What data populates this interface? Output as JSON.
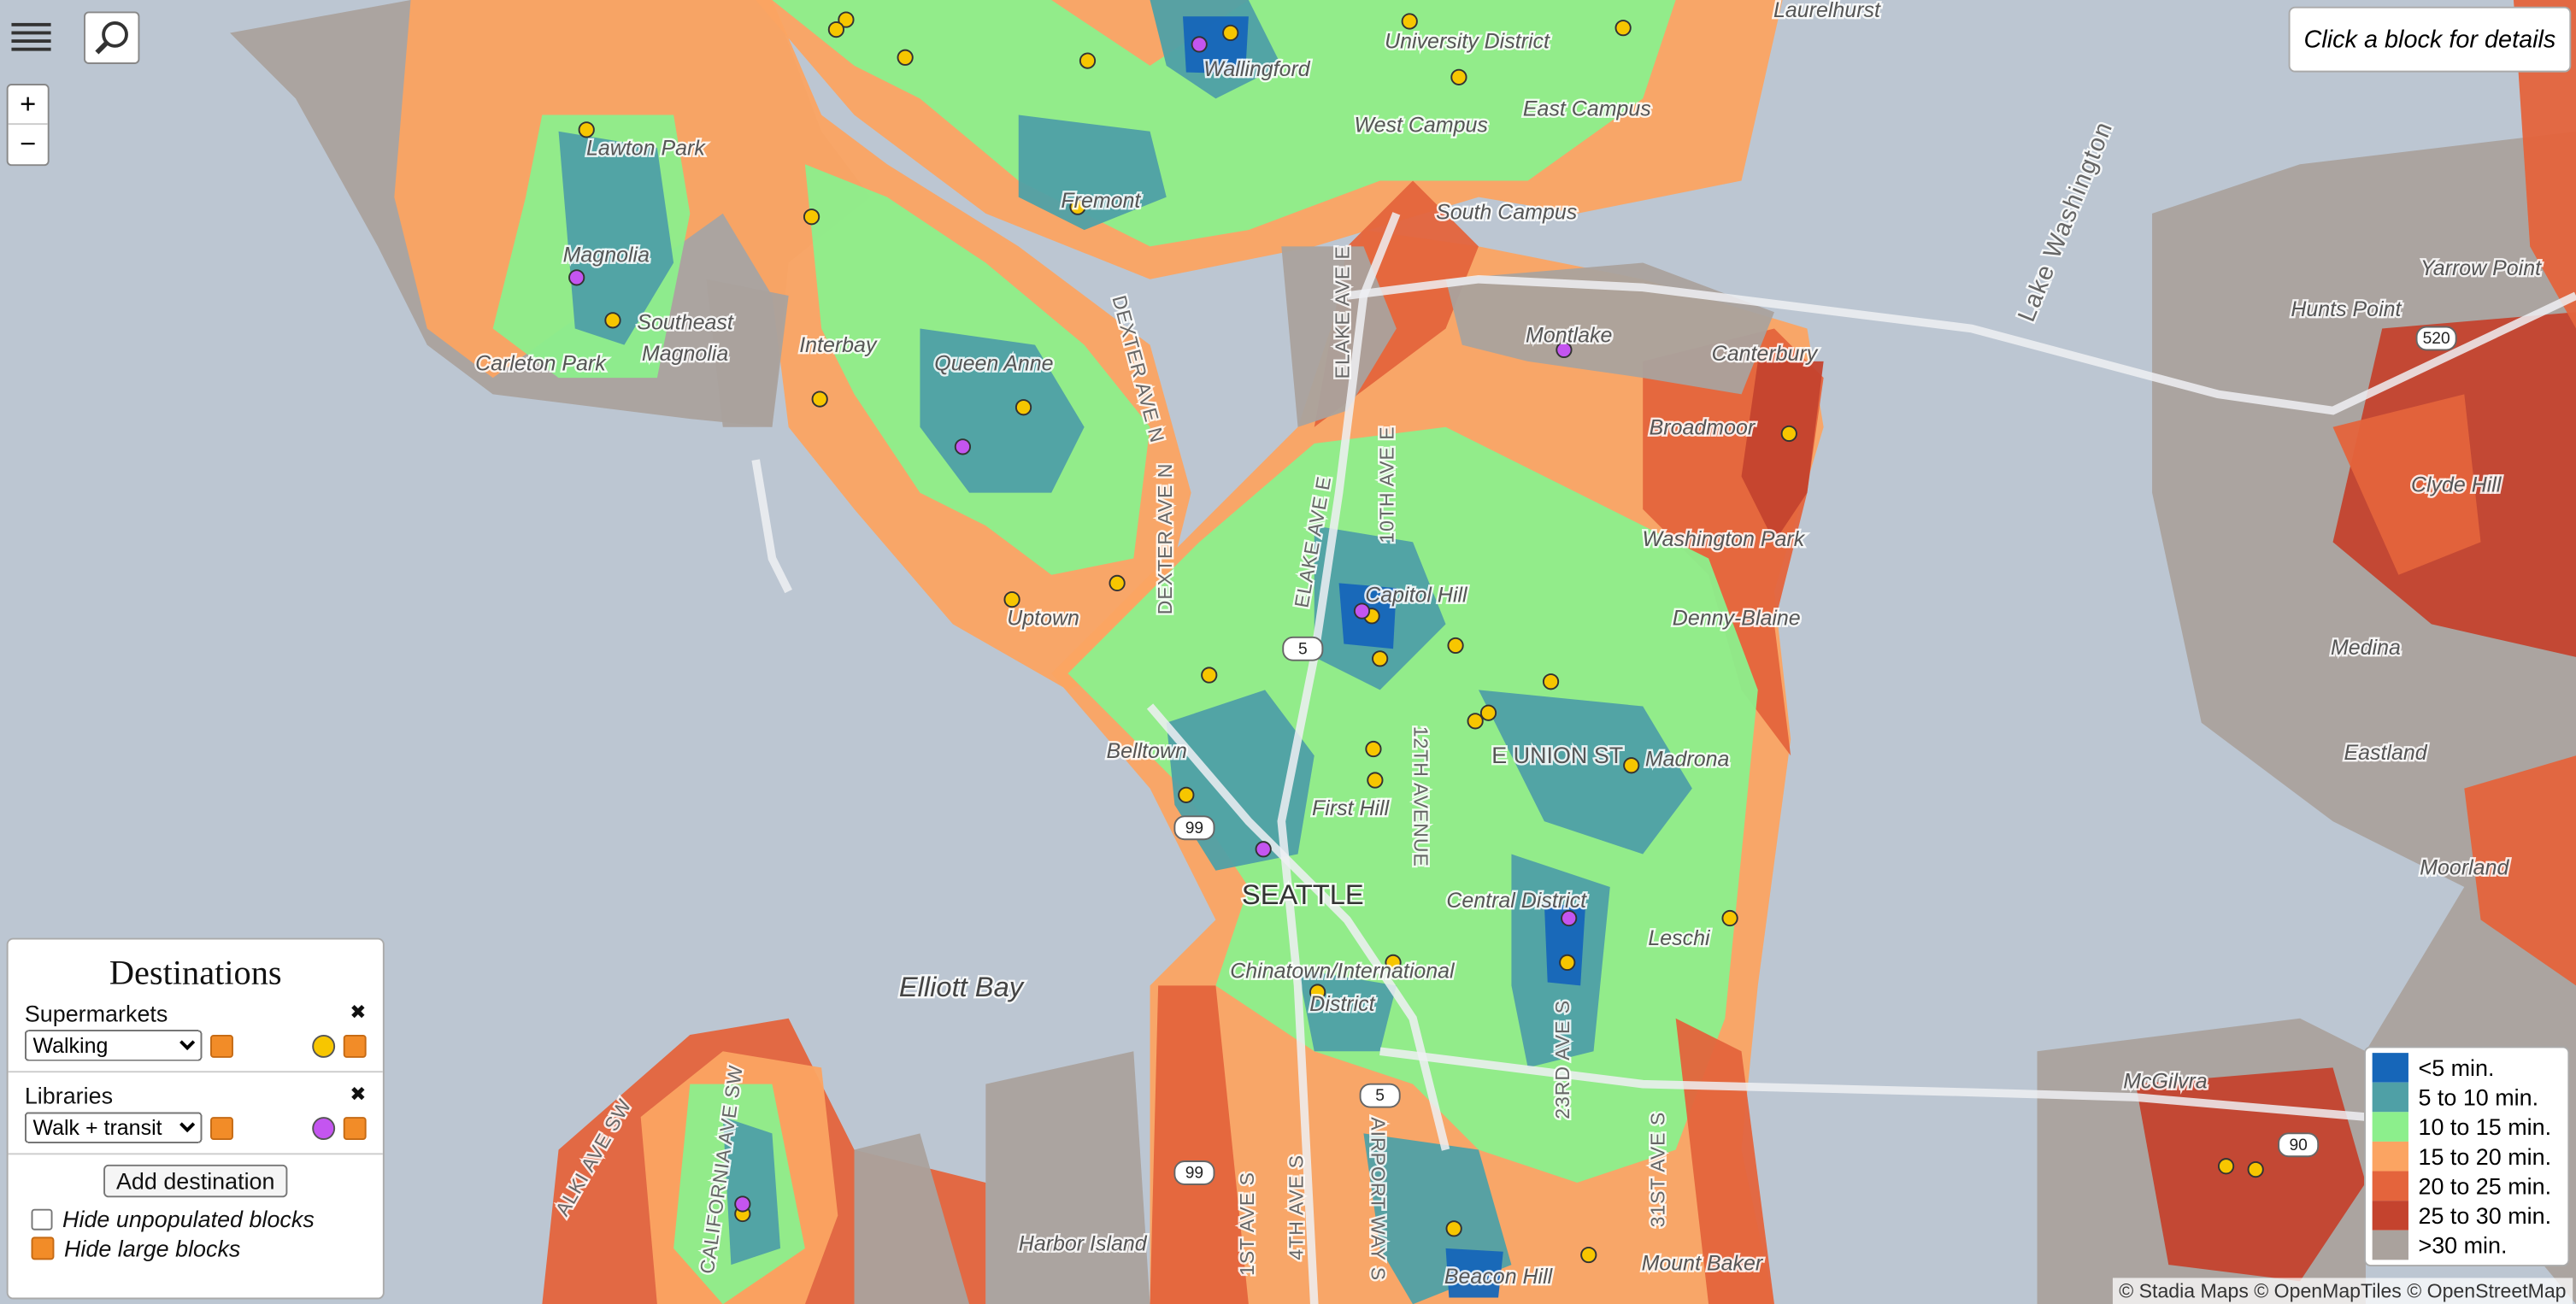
{
  "controls": {
    "zoom_in": "+",
    "zoom_out": "−"
  },
  "info_box": "Click a block for details",
  "map_labels": [
    "Wallingford",
    "University District",
    "Laurelhurst",
    "Lawton Park",
    "West Campus",
    "East Campus",
    "Fremont",
    "South Campus",
    "Magnolia",
    "Southeast",
    "Magnolia",
    "Carleton Park",
    "Interbay",
    "Queen Anne",
    "Montlake",
    "Canterbury",
    "Broadmoor",
    "Washington Park",
    "Capitol Hill",
    "Uptown",
    "Denny-Blaine",
    "Belltown",
    "E UNION ST",
    "Madrona",
    "First Hill",
    "SEATTLE",
    "Central District",
    "Leschi",
    "Elliott Bay",
    "Chinatown/International",
    "District",
    "Harbor Island",
    "Mount Baker",
    "Beacon Hill",
    "Lake Washington",
    "Yarrow Point",
    "Hunts Point",
    "Clyde Hill",
    "Medina",
    "Eastland",
    "Moorland",
    "McGilvra",
    "DEXTER AVE N",
    "ELAKE AVE E",
    "10TH AVE E",
    "ELAKE AVE E",
    "DEXTER AVE N",
    "12TH AVENUE",
    "23RD AVE S",
    "31ST AVE S",
    "1ST AVE S",
    "4TH AVE S",
    "AIRPORT WAY S",
    "CALIFORNIA AVE SW",
    "ALKI AVE SW"
  ],
  "road_shields": [
    "5",
    "99",
    "5",
    "99",
    "520",
    "90"
  ],
  "panel": {
    "title": "Destinations",
    "remove_icon": "✖",
    "destinations": [
      {
        "name": "Supermarkets",
        "mode": "Walking",
        "color": "#f7c600"
      },
      {
        "name": "Libraries",
        "mode": "Walk + transit",
        "color": "#c455f0"
      }
    ],
    "add_button": "Add destination",
    "options": [
      {
        "label": "Hide unpopulated blocks",
        "checked": false
      },
      {
        "label": "Hide large blocks",
        "checked": true
      }
    ]
  },
  "legend": [
    {
      "label": "<5 min.",
      "color": "#1666b9"
    },
    {
      "label": "5 to 10 min.",
      "color": "#4fa0a6"
    },
    {
      "label": "10 to 15 min.",
      "color": "#8cef8c"
    },
    {
      "label": "15 to 20 min.",
      "color": "#fba462"
    },
    {
      "label": "20 to 25 min.",
      "color": "#e4643c"
    },
    {
      "label": "25 to 30 min.",
      "color": "#c4432e"
    },
    {
      "label": ">30 min.",
      "color": "#aaa29d"
    }
  ],
  "attribution": "© Stadia Maps © OpenMapTiles © OpenStreetMap"
}
